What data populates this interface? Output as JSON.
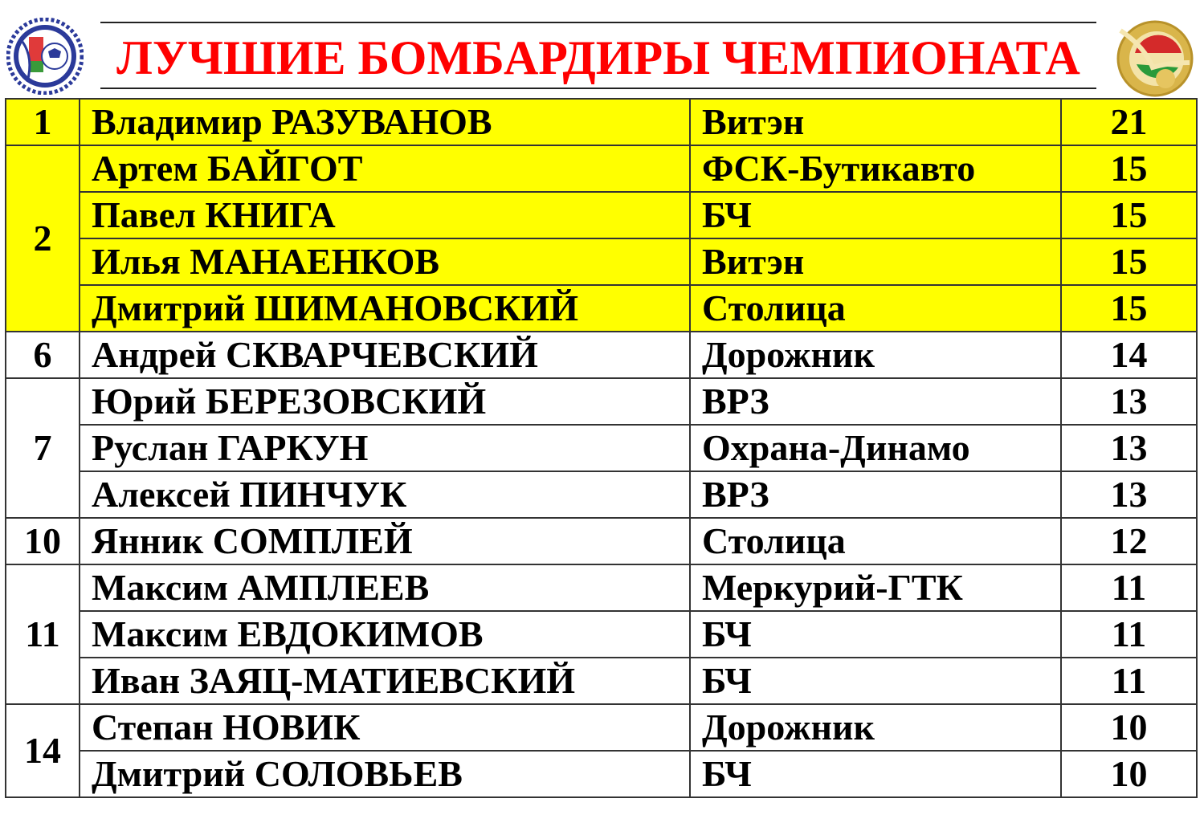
{
  "header": {
    "title": "ЛУЧШИЕ БОМБАРДИРЫ ЧЕМПИОНАТА",
    "left_logo": "championship-logo",
    "right_logo": "belarus-minifootball-association-logo"
  },
  "colors": {
    "title": "#ff0000",
    "highlight": "#ffff00"
  },
  "groups": [
    {
      "rank": "1",
      "highlight": true,
      "players": [
        {
          "name": "Владимир РАЗУВАНОВ",
          "team": "Витэн",
          "goals": "21"
        }
      ]
    },
    {
      "rank": "2",
      "highlight": true,
      "players": [
        {
          "name": "Артем БАЙГОТ",
          "team": "ФСК-Бутикавто",
          "goals": "15"
        },
        {
          "name": "Павел КНИГА",
          "team": "БЧ",
          "goals": "15"
        },
        {
          "name": "Илья МАНАЕНКОВ",
          "team": "Витэн",
          "goals": "15"
        },
        {
          "name": "Дмитрий ШИМАНОВСКИЙ",
          "team": "Столица",
          "goals": "15"
        }
      ]
    },
    {
      "rank": "6",
      "highlight": false,
      "players": [
        {
          "name": "Андрей СКВАРЧЕВСКИЙ",
          "team": "Дорожник",
          "goals": "14"
        }
      ]
    },
    {
      "rank": "7",
      "highlight": false,
      "players": [
        {
          "name": "Юрий БЕРЕЗОВСКИЙ",
          "team": "ВРЗ",
          "goals": "13"
        },
        {
          "name": "Руслан ГАРКУН",
          "team": "Охрана-Динамо",
          "goals": "13"
        },
        {
          "name": "Алексей ПИНЧУК",
          "team": "ВРЗ",
          "goals": "13"
        }
      ]
    },
    {
      "rank": "10",
      "highlight": false,
      "players": [
        {
          "name": "Янник СОМПЛЕЙ",
          "team": "Столица",
          "goals": "12"
        }
      ]
    },
    {
      "rank": "11",
      "highlight": false,
      "players": [
        {
          "name": "Максим АМПЛЕЕВ",
          "team": "Меркурий-ГТК",
          "goals": "11"
        },
        {
          "name": "Максим ЕВДОКИМОВ",
          "team": "БЧ",
          "goals": "11"
        },
        {
          "name": "Иван ЗАЯЦ-МАТИЕВСКИЙ",
          "team": "БЧ",
          "goals": "11"
        }
      ]
    },
    {
      "rank": "14",
      "highlight": false,
      "players": [
        {
          "name": "Степан НОВИК",
          "team": "Дорожник",
          "goals": "10"
        },
        {
          "name": "Дмитрий СОЛОВЬЕВ",
          "team": "БЧ",
          "goals": "10"
        }
      ]
    }
  ]
}
